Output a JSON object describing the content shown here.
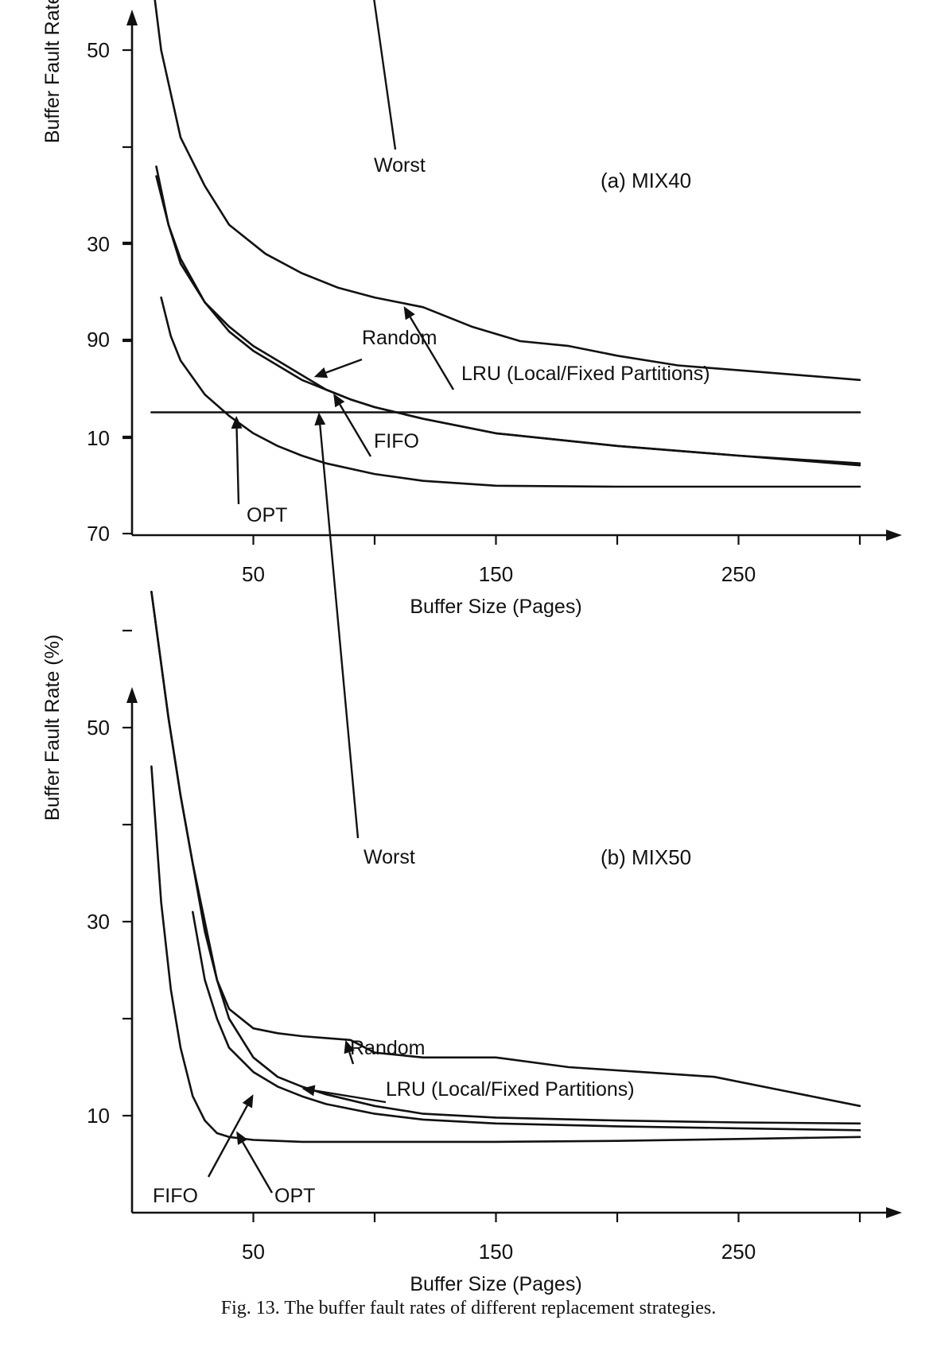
{
  "caption": "Fig. 13.   The buffer fault rates of different replacement strategies.",
  "chart_data": [
    {
      "type": "line",
      "title": "(a) MIX40",
      "xlabel": "Buffer Size (Pages)",
      "ylabel": "Buffer Fault Rate (%)",
      "xlim": [
        0,
        300
      ],
      "ylim": [
        0,
        100
      ],
      "xticks": [
        50,
        150,
        250
      ],
      "yticks": [
        10,
        30,
        50,
        70,
        90
      ],
      "grid": false,
      "series": [
        {
          "name": "Worst",
          "x": [
            8,
            150,
            300
          ],
          "y": [
            86.2,
            86.6,
            86.8
          ]
        },
        {
          "name": "Random",
          "x": [
            8,
            12,
            20,
            30,
            40,
            55,
            70,
            85,
            100,
            120,
            140,
            160,
            180,
            200,
            225,
            250,
            275,
            300
          ],
          "y": [
            58,
            50,
            41,
            36,
            32,
            29,
            27,
            25.5,
            24.5,
            23.5,
            21.5,
            20,
            19.5,
            18.5,
            17.5,
            17,
            16.5,
            16
          ]
        },
        {
          "name": "LRU (Local/Fixed Partitions)",
          "x": [
            10,
            15,
            20,
            30,
            40,
            50,
            60,
            70,
            80,
            90,
            100,
            120,
            150,
            200,
            250,
            300
          ],
          "y": [
            38,
            32,
            28.5,
            24,
            21.5,
            19.5,
            18,
            16.5,
            15,
            14,
            13.2,
            12,
            10.5,
            9.2,
            8.2,
            7.2
          ]
        },
        {
          "name": "FIFO",
          "x": [
            10,
            15,
            20,
            30,
            40,
            50,
            60,
            70,
            80,
            90,
            100,
            120,
            150,
            200,
            250,
            300
          ],
          "y": [
            37,
            32,
            28,
            24,
            21,
            19,
            17.5,
            16,
            15,
            14,
            13.2,
            12,
            10.5,
            9.2,
            8.2,
            7.4
          ]
        },
        {
          "name": "OPT",
          "x": [
            12,
            16,
            20,
            30,
            40,
            50,
            60,
            70,
            80,
            100,
            120,
            150,
            200,
            250,
            300
          ],
          "y": [
            24.5,
            20.5,
            18,
            14.5,
            12.3,
            10.5,
            9.2,
            8.2,
            7.4,
            6.3,
            5.6,
            5.1,
            5,
            5,
            5
          ]
        }
      ],
      "annotations": [
        "Worst",
        "Random",
        "LRU (Local/Fixed Partitions)",
        "FIFO",
        "OPT"
      ]
    },
    {
      "type": "line",
      "title": "(b) MIX50",
      "xlabel": "Buffer Size (Pages)",
      "ylabel": "Buffer Fault Rate (%)",
      "xlim": [
        0,
        300
      ],
      "ylim": [
        0,
        100
      ],
      "xticks": [
        50,
        150,
        250
      ],
      "yticks": [
        10,
        30,
        50,
        70,
        90
      ],
      "grid": false,
      "series": [
        {
          "name": "Worst",
          "x": [
            8,
            150,
            300
          ],
          "y": [
            82.5,
            82.5,
            82.5
          ]
        },
        {
          "name": "Random",
          "x": [
            8,
            15,
            20,
            25,
            30,
            35,
            40,
            50,
            60,
            70,
            80,
            90,
            100,
            120,
            150,
            180,
            210,
            240,
            270,
            300
          ],
          "y": [
            64,
            51,
            43,
            36,
            29,
            24,
            21,
            19,
            18.5,
            18.2,
            18,
            17.8,
            16.5,
            16,
            16,
            15,
            14.5,
            14,
            12.5,
            11
          ]
        },
        {
          "name": "LRU (Local/Fixed Partitions)",
          "x": [
            8,
            15,
            20,
            25,
            30,
            35,
            40,
            50,
            60,
            70,
            80,
            100,
            120,
            150,
            200,
            250,
            300
          ],
          "y": [
            64,
            51,
            43,
            36,
            30,
            24,
            20,
            16,
            14,
            13,
            12.2,
            11,
            10.2,
            9.8,
            9.5,
            9.3,
            9.2
          ]
        },
        {
          "name": "FIFO",
          "x": [
            8,
            12,
            16,
            20,
            25,
            30,
            35,
            40,
            50,
            60,
            70,
            80,
            100,
            150,
            200,
            250,
            300
          ],
          "y": [
            46,
            32,
            23,
            17,
            12,
            9.5,
            8.2,
            7.8,
            7.5,
            7.4,
            7.3,
            7.3,
            7.3,
            7.3,
            7.4,
            7.6,
            7.8
          ]
        },
        {
          "name": "OPT",
          "x": [
            25,
            30,
            35,
            40,
            50,
            60,
            70,
            80,
            100,
            120,
            150,
            200,
            250,
            300
          ],
          "y": [
            31,
            24,
            20,
            17,
            14.5,
            13,
            12,
            11.2,
            10.2,
            9.6,
            9.2,
            8.9,
            8.7,
            8.5
          ]
        }
      ],
      "annotations": [
        "Worst",
        "Random",
        "LRU (Local/Fixed Partitions)",
        "FIFO",
        "OPT"
      ]
    }
  ]
}
